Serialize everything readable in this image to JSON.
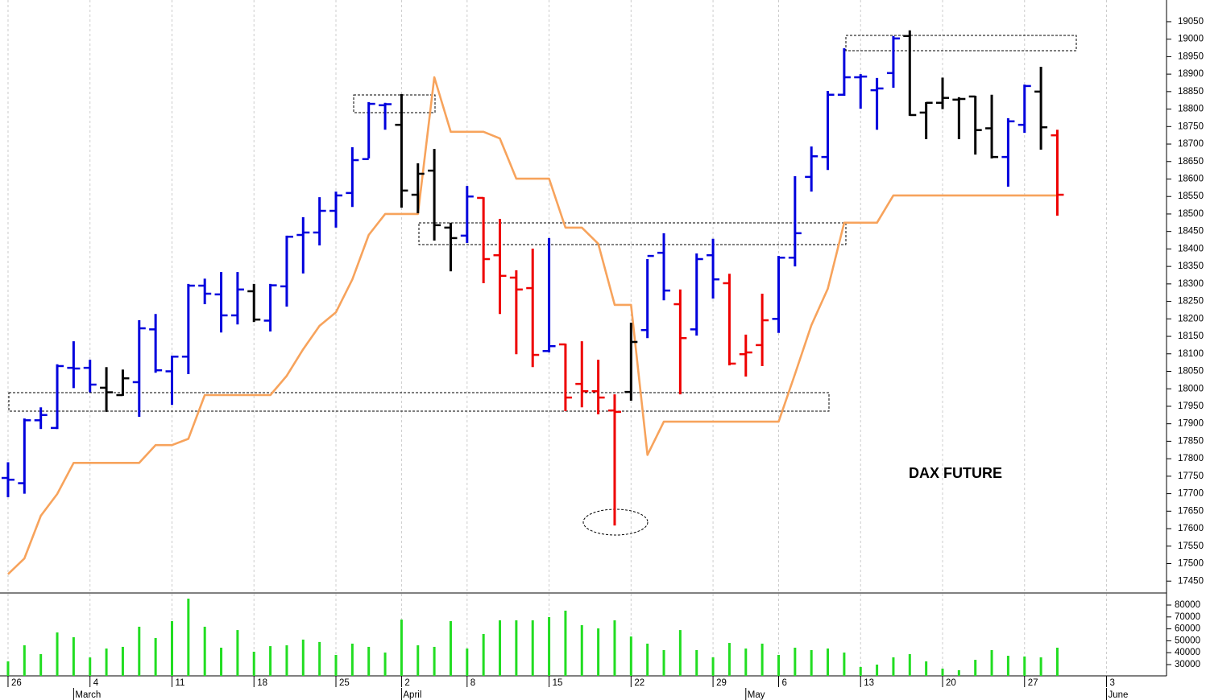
{
  "chart_data": {
    "type": "ohlc",
    "title": "DAX FUTURE",
    "open": [
      17745,
      17730,
      17910,
      17888,
      18060,
      18060,
      18003,
      17982,
      18019,
      18170,
      18050,
      18092,
      18295,
      18270,
      18210,
      18279,
      18195,
      18293,
      18440,
      18447,
      18509,
      18560,
      18657,
      18811,
      18755,
      18555,
      18624,
      18461,
      18438,
      18546,
      18382,
      18318,
      18288,
      18108,
      18127,
      18014,
      17993,
      17938,
      17991,
      18168,
      18389,
      18242,
      18170,
      18382,
      18302,
      18099,
      18125,
      18200,
      18375,
      18606,
      18663,
      18841,
      18891,
      18854,
      18903,
      19009,
      18790,
      18818,
      18827,
      18836,
      18745,
      18663,
      18755,
      18850,
      18725
    ],
    "high": [
      17790,
      17915,
      17947,
      18070,
      18136,
      18083,
      18062,
      18055,
      18196,
      18214,
      18095,
      18300,
      18315,
      18334,
      18334,
      18300,
      18300,
      18438,
      18491,
      18548,
      18564,
      18691,
      18820,
      18818,
      18843,
      18645,
      18686,
      18475,
      18580,
      18548,
      18486,
      18339,
      18401,
      18431,
      18129,
      18136,
      18083,
      17984,
      18189,
      18371,
      18445,
      18284,
      18387,
      18429,
      18329,
      18155,
      18272,
      18380,
      18608,
      18693,
      18852,
      18974,
      18900,
      18889,
      19009,
      19025,
      18820,
      18890,
      18834,
      18838,
      18841,
      18774,
      18870,
      18921,
      18741
    ],
    "low": [
      17690,
      17700,
      17885,
      17885,
      18002,
      17990,
      17934,
      17980,
      17920,
      18046,
      17954,
      18042,
      18242,
      18161,
      18184,
      18191,
      18164,
      18235,
      18330,
      18410,
      18461,
      18520,
      18659,
      18741,
      18518,
      18502,
      18424,
      18336,
      18417,
      18302,
      18214,
      18099,
      18062,
      18104,
      17936,
      17947,
      17927,
      17609,
      17966,
      18145,
      18253,
      17984,
      18152,
      18258,
      18067,
      18035,
      18065,
      18160,
      18350,
      18564,
      18626,
      18838,
      18801,
      18741,
      18861,
      18781,
      18714,
      18800,
      18714,
      18670,
      18659,
      18578,
      18732,
      18684,
      18495
    ],
    "close": [
      17740,
      17910,
      17925,
      18065,
      18058,
      18012,
      17990,
      18030,
      18173,
      18053,
      18092,
      18295,
      18272,
      18210,
      18284,
      18198,
      18296,
      18435,
      18447,
      18509,
      18553,
      18654,
      18815,
      18814,
      18567,
      18615,
      18468,
      18431,
      18550,
      18371,
      18323,
      18284,
      18097,
      18122,
      17975,
      17993,
      17975,
      17934,
      18134,
      18380,
      18281,
      18145,
      18371,
      18313,
      18072,
      18104,
      18196,
      18375,
      18445,
      18665,
      18841,
      18891,
      18893,
      18859,
      19002,
      18783,
      18818,
      18832,
      18829,
      18740,
      18663,
      18765,
      18866,
      18748,
      18555
    ],
    "colors": [
      "#0000dd",
      "#0000dd",
      "#0000dd",
      "#0000dd",
      "#0000dd",
      "#0000dd",
      "#000000",
      "#000000",
      "#0000dd",
      "#0000dd",
      "#0000dd",
      "#0000dd",
      "#0000dd",
      "#0000dd",
      "#0000dd",
      "#000000",
      "#0000dd",
      "#0000dd",
      "#0000dd",
      "#0000dd",
      "#0000dd",
      "#0000dd",
      "#0000dd",
      "#0000dd",
      "#000000",
      "#000000",
      "#000000",
      "#000000",
      "#0000dd",
      "#ee0000",
      "#ee0000",
      "#ee0000",
      "#ee0000",
      "#0000dd",
      "#ee0000",
      "#ee0000",
      "#ee0000",
      "#ee0000",
      "#000000",
      "#0000dd",
      "#0000dd",
      "#ee0000",
      "#0000dd",
      "#0000dd",
      "#ee0000",
      "#ee0000",
      "#ee0000",
      "#0000dd",
      "#0000dd",
      "#0000dd",
      "#0000dd",
      "#0000dd",
      "#0000dd",
      "#0000dd",
      "#0000dd",
      "#000000",
      "#000000",
      "#000000",
      "#000000",
      "#000000",
      "#000000",
      "#0000dd",
      "#0000dd",
      "#000000",
      "#ee0000"
    ],
    "line": {
      "color": "#f7a35c",
      "values": [
        17470,
        17515,
        17637,
        17699,
        17788,
        17788,
        17788,
        17788,
        17788,
        17839,
        17839,
        17857,
        17982,
        17982,
        17982,
        17982,
        17982,
        18037,
        18113,
        18180,
        18219,
        18313,
        18440,
        18500,
        18500,
        18500,
        18891,
        18735,
        18735,
        18735,
        18716,
        18601,
        18601,
        18601,
        18461,
        18461,
        18415,
        18240,
        18240,
        17811,
        17906,
        17906,
        17906,
        17906,
        17906,
        17906,
        17906,
        17906,
        18042,
        18182,
        18286,
        18475,
        18475,
        18475,
        18553,
        18553,
        18553,
        18553,
        18553,
        18553,
        18553,
        18553,
        18553,
        18553,
        18553
      ]
    },
    "ylim": [
      17416,
      19112
    ],
    "yticks": [
      17450,
      17500,
      17550,
      17600,
      17650,
      17700,
      17750,
      17800,
      17850,
      17900,
      17950,
      18000,
      18050,
      18100,
      18150,
      18200,
      18250,
      18300,
      18350,
      18400,
      18450,
      18500,
      18550,
      18600,
      18650,
      18700,
      18750,
      18800,
      18850,
      18900,
      18950,
      19000,
      19050
    ],
    "xlim": [
      -0.49,
      70.66
    ],
    "xticks": [
      {
        "value": 0,
        "label": "26"
      },
      {
        "value": 5,
        "label": "4"
      },
      {
        "value": 10,
        "label": "11"
      },
      {
        "value": 15,
        "label": "18"
      },
      {
        "value": 20,
        "label": "25"
      },
      {
        "value": 24,
        "label": "2"
      },
      {
        "value": 28,
        "label": "8"
      },
      {
        "value": 33,
        "label": "15"
      },
      {
        "value": 38,
        "label": "22"
      },
      {
        "value": 43,
        "label": "29"
      },
      {
        "value": 47,
        "label": "6"
      },
      {
        "value": 52,
        "label": "13"
      },
      {
        "value": 57,
        "label": "20"
      },
      {
        "value": 62,
        "label": "27"
      },
      {
        "value": 67,
        "label": "3"
      }
    ],
    "month_ticks": [
      {
        "value": 4,
        "label": "March"
      },
      {
        "value": 24,
        "label": "April"
      },
      {
        "value": 45,
        "label": "May"
      },
      {
        "value": 67,
        "label": "June"
      }
    ],
    "volume": {
      "color": "#22dd22",
      "values": [
        32700,
        46200,
        38800,
        57000,
        53000,
        36000,
        43500,
        44900,
        61800,
        52300,
        66500,
        85400,
        61800,
        44200,
        59000,
        40800,
        45500,
        46200,
        51000,
        49000,
        38100,
        47600,
        44900,
        40100,
        67800,
        46200,
        44900,
        66500,
        43500,
        55700,
        67200,
        67200,
        67200,
        69900,
        75300,
        63100,
        60400,
        67200,
        53600,
        47600,
        42200,
        59000,
        42200,
        36100,
        48200,
        43500,
        47600,
        38100,
        44200,
        42200,
        43500,
        40100,
        28000,
        30000,
        36100,
        38800,
        32700,
        26600,
        25300,
        34000,
        42200,
        37400,
        36800,
        36100,
        44200
      ],
      "ylim": [
        20540,
        90135
      ],
      "yticks": [
        30000,
        40000,
        50000,
        60000,
        70000,
        80000
      ]
    }
  }
}
